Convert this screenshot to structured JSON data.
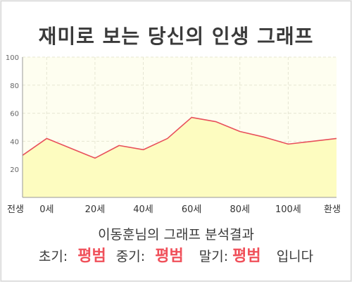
{
  "title": "재미로 보는 당신의 인생 그래프",
  "chart_data": {
    "type": "area",
    "title": "재미로 보는 당신의 인생 그래프",
    "xlabel": "",
    "ylabel": "",
    "ylim": [
      0,
      100
    ],
    "yticks": [
      20,
      40,
      60,
      80,
      100
    ],
    "xtick_labels": [
      "전생",
      "0세",
      "20세",
      "40세",
      "60세",
      "80세",
      "100세",
      "환생"
    ],
    "x": [
      "전생",
      "0세",
      "",
      "20세",
      "",
      "40세",
      "",
      "60세",
      "",
      "80세",
      "",
      "100세",
      "",
      "환생"
    ],
    "values": [
      30,
      42,
      35,
      28,
      37,
      34,
      42,
      57,
      54,
      47,
      43,
      38,
      40,
      42
    ],
    "grid": true,
    "colors": {
      "line": "#e8505b",
      "fill": "#fdfcc0",
      "plot_bg": "#fefef0",
      "grid": "#e6e6d2"
    }
  },
  "result": {
    "line1": "이동훈님의 그래프 분석결과",
    "early_label": "초기:",
    "early_value": "평범",
    "middle_label": "중기:",
    "middle_value": "평범",
    "late_label": "말기:",
    "late_value": "평범",
    "suffix": "입니다"
  }
}
